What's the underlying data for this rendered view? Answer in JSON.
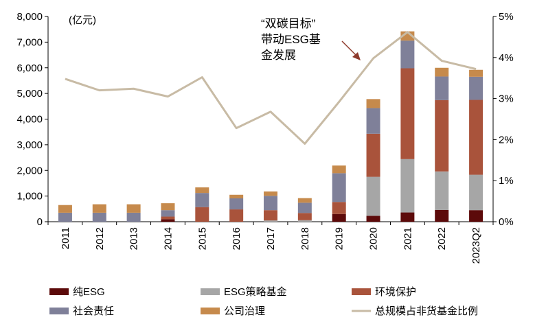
{
  "chart_data": {
    "type": "bar",
    "stacked": true,
    "unit_left": "(亿元)",
    "categories": [
      "2011",
      "2012",
      "2013",
      "2014",
      "2015",
      "2016",
      "2017",
      "2018",
      "2019",
      "2020",
      "2021",
      "2022",
      "2023Q2"
    ],
    "series": [
      {
        "name": "纯ESG",
        "color": "#5c0a0a",
        "values": [
          0,
          0,
          0,
          100,
          0,
          0,
          0,
          0,
          300,
          230,
          360,
          460,
          450
        ]
      },
      {
        "name": "ESG策略基金",
        "color": "#a6a6a6",
        "values": [
          0,
          0,
          0,
          0,
          0,
          0,
          50,
          60,
          0,
          1520,
          2080,
          1500,
          1380
        ]
      },
      {
        "name": "环境保护",
        "color": "#a9533b",
        "values": [
          0,
          0,
          0,
          100,
          570,
          480,
          400,
          280,
          470,
          1680,
          3540,
          2780,
          2920
        ]
      },
      {
        "name": "社会责任",
        "color": "#7f8099",
        "values": [
          350,
          350,
          350,
          250,
          550,
          430,
          560,
          400,
          1120,
          1000,
          1080,
          920,
          900
        ]
      },
      {
        "name": "公司治理",
        "color": "#c68a4c",
        "values": [
          300,
          330,
          330,
          270,
          220,
          140,
          170,
          180,
          300,
          350,
          360,
          340,
          270
        ]
      }
    ],
    "line": {
      "name": "总规模占非货基金比例",
      "color": "#c8bba5",
      "values": [
        3.48,
        3.2,
        3.24,
        3.05,
        3.52,
        2.28,
        2.68,
        1.9,
        2.92,
        3.98,
        4.62,
        3.92,
        3.72
      ]
    },
    "y_left": {
      "min": 0,
      "max": 8000,
      "step": 1000,
      "ticks": [
        "0",
        "1,000",
        "2,000",
        "3,000",
        "4,000",
        "5,000",
        "6,000",
        "7,000",
        "8,000"
      ]
    },
    "y_right": {
      "min": 0,
      "max": 5,
      "step": 1,
      "ticks": [
        "0%",
        "1%",
        "2%",
        "3%",
        "4%",
        "5%"
      ]
    },
    "annotation": {
      "lines": [
        "“双碳目标”",
        "带动ESG基",
        "金发展"
      ],
      "arrow_target_category": "2019"
    },
    "legend_position": "bottom",
    "grid": false
  }
}
